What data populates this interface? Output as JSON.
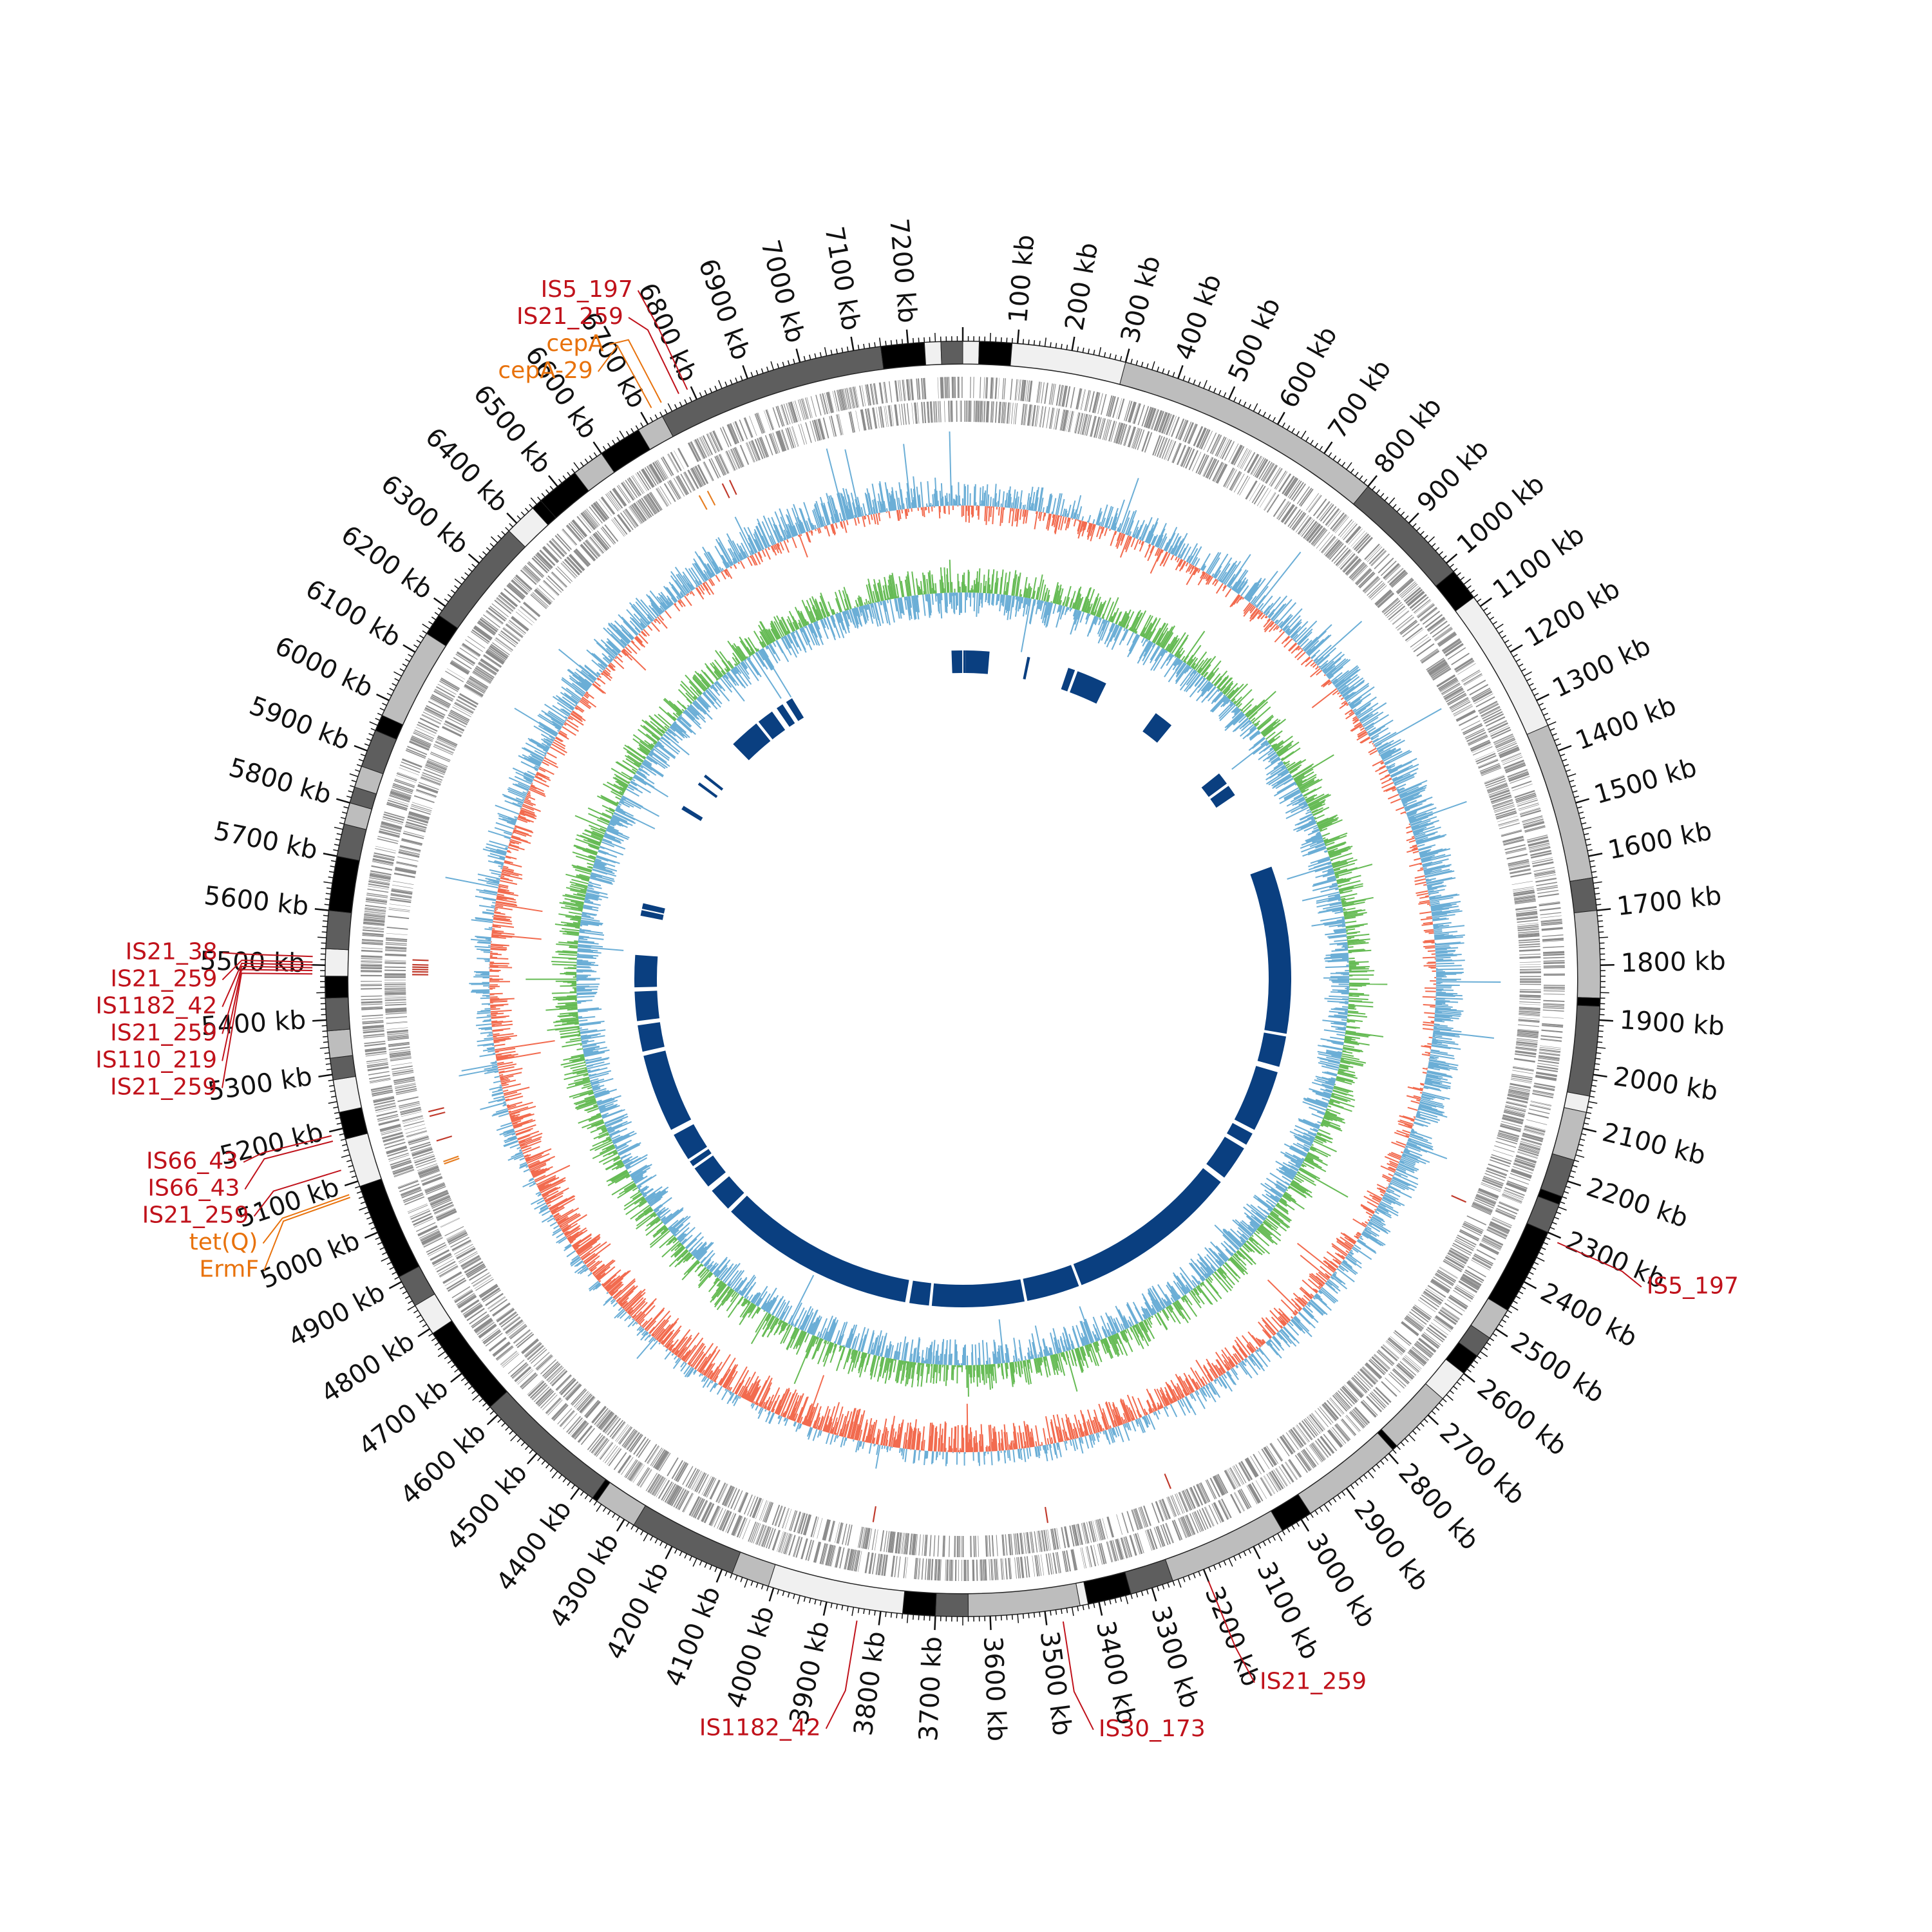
{
  "genome": {
    "length_kb": 7300,
    "tick_step_kb": 100,
    "tick_unit": "kb"
  },
  "colors": {
    "contig_palette": [
      "#000000",
      "#5e5e5e",
      "#bdbdbd",
      "#f0f0f0"
    ],
    "gene": "#8c8c8c",
    "is_mark": "#c0392b",
    "resistance_mark": "#e67e22",
    "gc_skew_positive": "#6baed6",
    "gc_skew_negative": "#f26b4f",
    "gc_content": "#66bb55",
    "blast_hit": "#0a3f80",
    "is_label": "#c0121b",
    "resistance_label": "#e8720c",
    "tick": "#111111"
  },
  "contigs": [
    {
      "start": 0,
      "end": 30,
      "shade": 3
    },
    {
      "start": 30,
      "end": 90,
      "shade": 0
    },
    {
      "start": 90,
      "end": 300,
      "shade": 3
    },
    {
      "start": 300,
      "end": 800,
      "shade": 2
    },
    {
      "start": 800,
      "end": 1020,
      "shade": 1
    },
    {
      "start": 1020,
      "end": 1080,
      "shade": 0
    },
    {
      "start": 1080,
      "end": 1350,
      "shade": 3
    },
    {
      "start": 1350,
      "end": 1640,
      "shade": 2
    },
    {
      "start": 1640,
      "end": 1700,
      "shade": 1
    },
    {
      "start": 1700,
      "end": 1860,
      "shade": 2
    },
    {
      "start": 1860,
      "end": 1875,
      "shade": 0
    },
    {
      "start": 1875,
      "end": 2040,
      "shade": 1
    },
    {
      "start": 2040,
      "end": 2070,
      "shade": 3
    },
    {
      "start": 2070,
      "end": 2160,
      "shade": 2
    },
    {
      "start": 2160,
      "end": 2230,
      "shade": 1
    },
    {
      "start": 2230,
      "end": 2245,
      "shade": 0
    },
    {
      "start": 2245,
      "end": 2300,
      "shade": 1
    },
    {
      "start": 2300,
      "end": 2460,
      "shade": 0
    },
    {
      "start": 2460,
      "end": 2520,
      "shade": 2
    },
    {
      "start": 2520,
      "end": 2560,
      "shade": 1
    },
    {
      "start": 2560,
      "end": 2600,
      "shade": 0
    },
    {
      "start": 2600,
      "end": 2660,
      "shade": 3
    },
    {
      "start": 2660,
      "end": 2780,
      "shade": 2
    },
    {
      "start": 2780,
      "end": 2790,
      "shade": 0
    },
    {
      "start": 2790,
      "end": 2980,
      "shade": 2
    },
    {
      "start": 2980,
      "end": 3040,
      "shade": 0
    },
    {
      "start": 3040,
      "end": 3260,
      "shade": 2
    },
    {
      "start": 3260,
      "end": 3340,
      "shade": 1
    },
    {
      "start": 3340,
      "end": 3420,
      "shade": 0
    },
    {
      "start": 3420,
      "end": 3435,
      "shade": 3
    },
    {
      "start": 3435,
      "end": 3640,
      "shade": 2
    },
    {
      "start": 3640,
      "end": 3700,
      "shade": 1
    },
    {
      "start": 3700,
      "end": 3760,
      "shade": 0
    },
    {
      "start": 3760,
      "end": 4010,
      "shade": 3
    },
    {
      "start": 4010,
      "end": 4080,
      "shade": 2
    },
    {
      "start": 4080,
      "end": 4280,
      "shade": 1
    },
    {
      "start": 4280,
      "end": 4360,
      "shade": 2
    },
    {
      "start": 4360,
      "end": 4370,
      "shade": 0
    },
    {
      "start": 4370,
      "end": 4620,
      "shade": 1
    },
    {
      "start": 4620,
      "end": 4790,
      "shade": 0
    },
    {
      "start": 4790,
      "end": 4850,
      "shade": 3
    },
    {
      "start": 4850,
      "end": 4910,
      "shade": 1
    },
    {
      "start": 4910,
      "end": 5090,
      "shade": 0
    },
    {
      "start": 5090,
      "end": 5180,
      "shade": 3
    },
    {
      "start": 5180,
      "end": 5230,
      "shade": 0
    },
    {
      "start": 5230,
      "end": 5290,
      "shade": 3
    },
    {
      "start": 5290,
      "end": 5330,
      "shade": 1
    },
    {
      "start": 5330,
      "end": 5380,
      "shade": 2
    },
    {
      "start": 5380,
      "end": 5440,
      "shade": 1
    },
    {
      "start": 5440,
      "end": 5480,
      "shade": 0
    },
    {
      "start": 5480,
      "end": 5530,
      "shade": 3
    },
    {
      "start": 5530,
      "end": 5600,
      "shade": 1
    },
    {
      "start": 5600,
      "end": 5700,
      "shade": 0
    },
    {
      "start": 5700,
      "end": 5760,
      "shade": 1
    },
    {
      "start": 5760,
      "end": 5800,
      "shade": 2
    },
    {
      "start": 5800,
      "end": 5830,
      "shade": 1
    },
    {
      "start": 5830,
      "end": 5870,
      "shade": 2
    },
    {
      "start": 5870,
      "end": 5940,
      "shade": 1
    },
    {
      "start": 5940,
      "end": 5970,
      "shade": 0
    },
    {
      "start": 5970,
      "end": 6140,
      "shade": 2
    },
    {
      "start": 6140,
      "end": 6180,
      "shade": 0
    },
    {
      "start": 6180,
      "end": 6380,
      "shade": 1
    },
    {
      "start": 6380,
      "end": 6440,
      "shade": 3
    },
    {
      "start": 6440,
      "end": 6460,
      "shade": 0
    },
    {
      "start": 6460,
      "end": 6540,
      "shade": 0
    },
    {
      "start": 6540,
      "end": 6600,
      "shade": 2
    },
    {
      "start": 6600,
      "end": 6680,
      "shade": 0
    },
    {
      "start": 6680,
      "end": 6730,
      "shade": 2
    },
    {
      "start": 6730,
      "end": 7150,
      "shade": 1
    },
    {
      "start": 7150,
      "end": 7230,
      "shade": 0
    },
    {
      "start": 7230,
      "end": 7260,
      "shade": 3
    },
    {
      "start": 7260,
      "end": 7300,
      "shade": 1
    }
  ],
  "blast_hits": [
    {
      "start": 7260,
      "end": 7298
    },
    {
      "start": 7302,
      "end": 7310
    },
    {
      "start": 10,
      "end": 95
    },
    {
      "start": 230,
      "end": 240
    },
    {
      "start": 380,
      "end": 405
    },
    {
      "start": 415,
      "end": 525
    },
    {
      "start": 730,
      "end": 800
    },
    {
      "start": 1040,
      "end": 1085
    },
    {
      "start": 1095,
      "end": 1135
    },
    {
      "start": 1420,
      "end": 2020
    },
    {
      "start": 2030,
      "end": 2140
    },
    {
      "start": 2160,
      "end": 2380
    },
    {
      "start": 2395,
      "end": 2440
    },
    {
      "start": 2455,
      "end": 2580
    },
    {
      "start": 2600,
      "end": 3220
    },
    {
      "start": 3230,
      "end": 3420
    },
    {
      "start": 3430,
      "end": 3760
    },
    {
      "start": 3770,
      "end": 3840
    },
    {
      "start": 3855,
      "end": 4560
    },
    {
      "start": 4575,
      "end": 4660
    },
    {
      "start": 4680,
      "end": 4760
    },
    {
      "start": 4770,
      "end": 4790
    },
    {
      "start": 4800,
      "end": 4900
    },
    {
      "start": 4920,
      "end": 5200
    },
    {
      "start": 5215,
      "end": 5310
    },
    {
      "start": 5325,
      "end": 5430
    },
    {
      "start": 5445,
      "end": 5560
    },
    {
      "start": 5700,
      "end": 5720
    },
    {
      "start": 5725,
      "end": 5745
    },
    {
      "start": 6105,
      "end": 6120
    },
    {
      "start": 6210,
      "end": 6220
    },
    {
      "start": 6245,
      "end": 6255
    },
    {
      "start": 6400,
      "end": 6510
    },
    {
      "start": 6520,
      "end": 6580
    },
    {
      "start": 6600,
      "end": 6625
    },
    {
      "start": 6640,
      "end": 6665
    }
  ],
  "annotations": [
    {
      "label": "IS5_197",
      "pos": 6792,
      "kind": "is"
    },
    {
      "label": "IS21_259",
      "pos": 6775,
      "kind": "is"
    },
    {
      "label": "cepA",
      "pos": 6740,
      "kind": "resistance"
    },
    {
      "label": "cepA-29",
      "pos": 6720,
      "kind": "resistance"
    },
    {
      "label": "IS5_197",
      "pos": 2310,
      "kind": "is"
    },
    {
      "label": "IS21_259",
      "pos": 3200,
      "kind": "is"
    },
    {
      "label": "IS30_173",
      "pos": 3470,
      "kind": "is"
    },
    {
      "label": "IS1182_42",
      "pos": 3840,
      "kind": "is"
    },
    {
      "label": "tet(Q)",
      "pos": 5082,
      "kind": "resistance"
    },
    {
      "label": "ErmF",
      "pos": 5077,
      "kind": "resistance"
    },
    {
      "label": "IS21_259",
      "pos": 5128,
      "kind": "is"
    },
    {
      "label": "IS66_43",
      "pos": 5182,
      "kind": "is"
    },
    {
      "label": "IS66_43",
      "pos": 5192,
      "kind": "is"
    },
    {
      "label": "IS21_259",
      "pos": 5484,
      "kind": "is"
    },
    {
      "label": "IS110_219",
      "pos": 5490,
      "kind": "is"
    },
    {
      "label": "IS21_259",
      "pos": 5495,
      "kind": "is"
    },
    {
      "label": "IS1182_42",
      "pos": 5500,
      "kind": "is"
    },
    {
      "label": "IS21_259",
      "pos": 5505,
      "kind": "is"
    },
    {
      "label": "IS21_38",
      "pos": 5515,
      "kind": "is"
    }
  ]
}
